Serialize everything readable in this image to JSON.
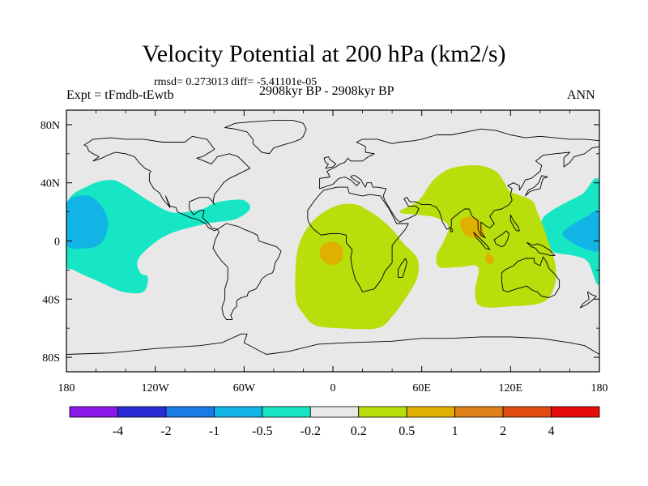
{
  "chart_data": {
    "type": "heatmap",
    "title": "Velocity Potential at 200 hPa (km2/s)",
    "stats_text": "rmsd= 0.273013 diff= -5.41101e-05",
    "left_subtitle": "Expt = tFmdb-tEwtb",
    "center_subtitle": "2908kyr BP - 2908kyr BP",
    "right_subtitle": "ANN",
    "x_range": [
      -180,
      180
    ],
    "y_range": [
      -90,
      90
    ],
    "x_ticks": [
      {
        "value": -180,
        "label": "180"
      },
      {
        "value": -120,
        "label": "120W"
      },
      {
        "value": -60,
        "label": "60W"
      },
      {
        "value": 0,
        "label": "0"
      },
      {
        "value": 60,
        "label": "60E"
      },
      {
        "value": 120,
        "label": "120E"
      },
      {
        "value": 180,
        "label": "180"
      }
    ],
    "y_ticks": [
      {
        "value": 80,
        "label": "80N"
      },
      {
        "value": 40,
        "label": "40N"
      },
      {
        "value": 0,
        "label": "0"
      },
      {
        "value": -40,
        "label": "40S"
      },
      {
        "value": -80,
        "label": "80S"
      }
    ],
    "colorbar": {
      "bins": [
        {
          "color": "#8a18e6"
        },
        {
          "color": "#2b2bd6"
        },
        {
          "color": "#1a7ae6"
        },
        {
          "color": "#12b4e6"
        },
        {
          "color": "#17e6c4"
        },
        {
          "color": "#e8e8e8"
        },
        {
          "color": "#b8de0c"
        },
        {
          "color": "#e0b000"
        },
        {
          "color": "#e08018"
        },
        {
          "color": "#e04c10"
        },
        {
          "color": "#e60c0c"
        }
      ],
      "levels": [
        "-4",
        "-2",
        "-1",
        "-0.5",
        "-0.2",
        "0.2",
        "0.5",
        "1",
        "2",
        "4"
      ]
    },
    "regions": [
      {
        "name": "pacific-negative-west",
        "category": "-0.5 to -0.2",
        "color": "#17e6c4",
        "polygon": [
          [
            -180,
            25
          ],
          [
            -165,
            38
          ],
          [
            -150,
            42
          ],
          [
            -140,
            38
          ],
          [
            -125,
            28
          ],
          [
            -110,
            20
          ],
          [
            -98,
            20
          ],
          [
            -88,
            22
          ],
          [
            -80,
            26
          ],
          [
            -70,
            28
          ],
          [
            -60,
            28
          ],
          [
            -56,
            22
          ],
          [
            -66,
            15
          ],
          [
            -85,
            12
          ],
          [
            -110,
            5
          ],
          [
            -125,
            -5
          ],
          [
            -132,
            -14
          ],
          [
            -130,
            -22
          ],
          [
            -125,
            -25
          ],
          [
            -128,
            -35
          ],
          [
            -142,
            -35
          ],
          [
            -158,
            -28
          ],
          [
            -175,
            -20
          ],
          [
            -180,
            -15
          ]
        ]
      },
      {
        "name": "pacific-negative-west-core",
        "category": "-1 to -0.5",
        "color": "#12b4e6",
        "polygon": [
          [
            -180,
            26
          ],
          [
            -165,
            31
          ],
          [
            -155,
            22
          ],
          [
            -152,
            10
          ],
          [
            -157,
            -2
          ],
          [
            -168,
            -5
          ],
          [
            -180,
            -2
          ]
        ]
      },
      {
        "name": "pacific-negative-east",
        "category": "-0.5 to -0.2",
        "color": "#17e6c4",
        "polygon": [
          [
            180,
            40
          ],
          [
            168,
            32
          ],
          [
            153,
            24
          ],
          [
            142,
            16
          ],
          [
            140,
            5
          ],
          [
            142,
            -2
          ],
          [
            150,
            -8
          ],
          [
            162,
            -10
          ],
          [
            172,
            -14
          ],
          [
            180,
            -28
          ]
        ]
      },
      {
        "name": "pacific-negative-east-core",
        "category": "-1 to -0.5",
        "color": "#12b4e6",
        "polygon": [
          [
            180,
            20
          ],
          [
            170,
            16
          ],
          [
            160,
            10
          ],
          [
            155,
            5
          ],
          [
            160,
            0
          ],
          [
            172,
            -6
          ],
          [
            180,
            -5
          ]
        ]
      },
      {
        "name": "africa-positive",
        "category": "0.2 to 0.5",
        "color": "#b8de0c",
        "polygon": [
          [
            -15,
            12
          ],
          [
            -6,
            20
          ],
          [
            5,
            25
          ],
          [
            16,
            25
          ],
          [
            22,
            22
          ],
          [
            30,
            17
          ],
          [
            40,
            8
          ],
          [
            48,
            -2
          ],
          [
            57,
            -12
          ],
          [
            57,
            -25
          ],
          [
            50,
            -38
          ],
          [
            40,
            -52
          ],
          [
            30,
            -60
          ],
          [
            5,
            -60
          ],
          [
            -12,
            -58
          ],
          [
            -20,
            -50
          ],
          [
            -25,
            -40
          ],
          [
            -25,
            -15
          ],
          [
            -22,
            0
          ]
        ]
      },
      {
        "name": "asia-positive",
        "category": "0.2 to 0.5",
        "color": "#b8de0c",
        "polygon": [
          [
            45,
            20
          ],
          [
            58,
            28
          ],
          [
            68,
            42
          ],
          [
            80,
            50
          ],
          [
            98,
            52
          ],
          [
            110,
            48
          ],
          [
            116,
            40
          ],
          [
            120,
            34
          ],
          [
            134,
            28
          ],
          [
            138,
            20
          ],
          [
            142,
            10
          ],
          [
            146,
            -2
          ],
          [
            150,
            -15
          ],
          [
            150,
            -30
          ],
          [
            142,
            -42
          ],
          [
            120,
            -45
          ],
          [
            100,
            -45
          ],
          [
            96,
            -35
          ],
          [
            98,
            -18
          ],
          [
            85,
            -18
          ],
          [
            72,
            -18
          ],
          [
            70,
            -10
          ],
          [
            75,
            0
          ],
          [
            78,
            10
          ],
          [
            70,
            16
          ],
          [
            58,
            18
          ]
        ]
      },
      {
        "name": "africa-positive-core",
        "category": "0.5 to 1",
        "color": "#e0b000",
        "polygon": [
          [
            -8,
            -4
          ],
          [
            -4,
            -1
          ],
          [
            2,
            -1
          ],
          [
            6,
            -4
          ],
          [
            7,
            -8
          ],
          [
            6,
            -13
          ],
          [
            2,
            -16
          ],
          [
            -3,
            -16
          ],
          [
            -7,
            -13
          ],
          [
            -9,
            -9
          ]
        ]
      },
      {
        "name": "maritime-positive-core",
        "category": "0.5 to 1",
        "color": "#e0b000",
        "polygon": [
          [
            86,
            13
          ],
          [
            89,
            16
          ],
          [
            96,
            16
          ],
          [
            100,
            12
          ],
          [
            102,
            6
          ],
          [
            100,
            2
          ],
          [
            96,
            2
          ],
          [
            90,
            4
          ],
          [
            87,
            8
          ]
        ]
      },
      {
        "name": "maritime-positive-core-south",
        "category": "0.5 to 1",
        "color": "#e0b000",
        "polygon": [
          [
            104,
            -8
          ],
          [
            107,
            -10
          ],
          [
            109,
            -13
          ],
          [
            107,
            -16
          ],
          [
            104,
            -15
          ],
          [
            103,
            -12
          ]
        ]
      }
    ]
  }
}
